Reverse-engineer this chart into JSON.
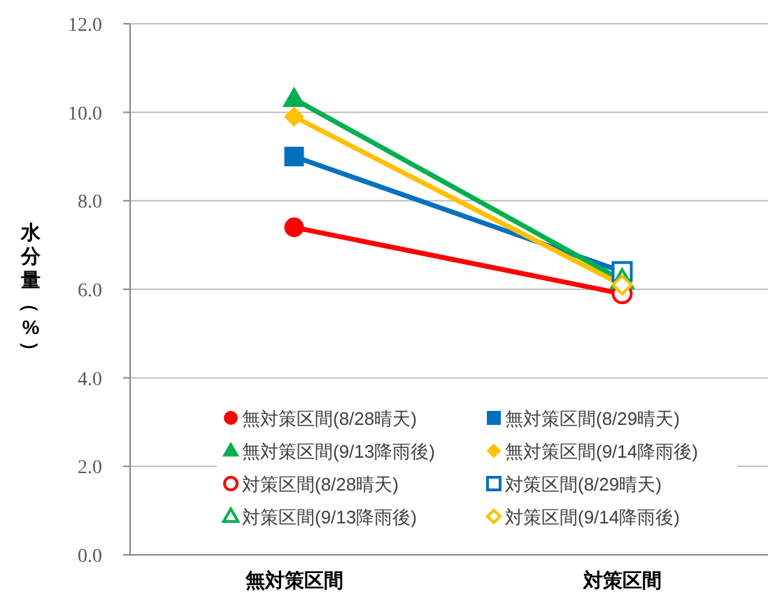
{
  "chart_data": {
    "type": "line",
    "ylabel": "水分量（%）",
    "categories": [
      "無対策区間",
      "対策区間"
    ],
    "ylim": [
      0,
      12
    ],
    "yticks": [
      {
        "value": 0,
        "label": "0.0"
      },
      {
        "value": 2,
        "label": "2.0"
      },
      {
        "value": 4,
        "label": "4.0"
      },
      {
        "value": 6,
        "label": "6.0"
      },
      {
        "value": 8,
        "label": "8.0"
      },
      {
        "value": 10,
        "label": "10.0"
      },
      {
        "value": 12,
        "label": "12.0"
      }
    ],
    "grid": "y",
    "legend": "bottom",
    "series": [
      {
        "color": "#ff0000",
        "values": [
          7.4,
          5.9
        ],
        "marker": "none"
      },
      {
        "color": "#0070c0",
        "values": [
          9.0,
          6.4
        ],
        "marker": "none"
      },
      {
        "color": "#00b050",
        "values": [
          10.3,
          6.2
        ],
        "marker": "none"
      },
      {
        "color": "#ffc000",
        "values": [
          9.9,
          6.1
        ],
        "marker": "none"
      },
      {
        "name": "無対策区間(8/28晴天)",
        "color": "#ff0000",
        "x": [
          "無対策区間"
        ],
        "values": [
          7.4
        ],
        "marker": "circle"
      },
      {
        "name": "無対策区間(8/29晴天)",
        "color": "#0070c0",
        "x": [
          "無対策区間"
        ],
        "values": [
          9.0
        ],
        "marker": "square"
      },
      {
        "name": "無対策区間(9/13降雨後)",
        "color": "#00b050",
        "x": [
          "無対策区間"
        ],
        "values": [
          10.3
        ],
        "marker": "triangle"
      },
      {
        "name": "無対策区間(9/14降雨後)",
        "color": "#ffc000",
        "x": [
          "無対策区間"
        ],
        "values": [
          9.9
        ],
        "marker": "diamond"
      },
      {
        "type": "scatter",
        "name": "対策区間(8/28晴天)",
        "color": "#ff0000",
        "x": [
          "対策区間"
        ],
        "values": [
          5.9
        ],
        "marker": "circle"
      },
      {
        "type": "scatter",
        "name": "対策区間(8/29晴天)",
        "color": "#0070c0",
        "x": [
          "対策区間"
        ],
        "values": [
          6.4
        ],
        "marker": "square"
      },
      {
        "type": "scatter",
        "name": "対策区間(9/13降雨後)",
        "color": "#00b050",
        "x": [
          "対策区間"
        ],
        "values": [
          6.2
        ],
        "marker": "triangle"
      },
      {
        "type": "scatter",
        "name": "対策区間(9/14降雨後)",
        "color": "#ffc000",
        "x": [
          "対策区間"
        ],
        "values": [
          6.1
        ],
        "marker": "diamond"
      }
    ]
  }
}
